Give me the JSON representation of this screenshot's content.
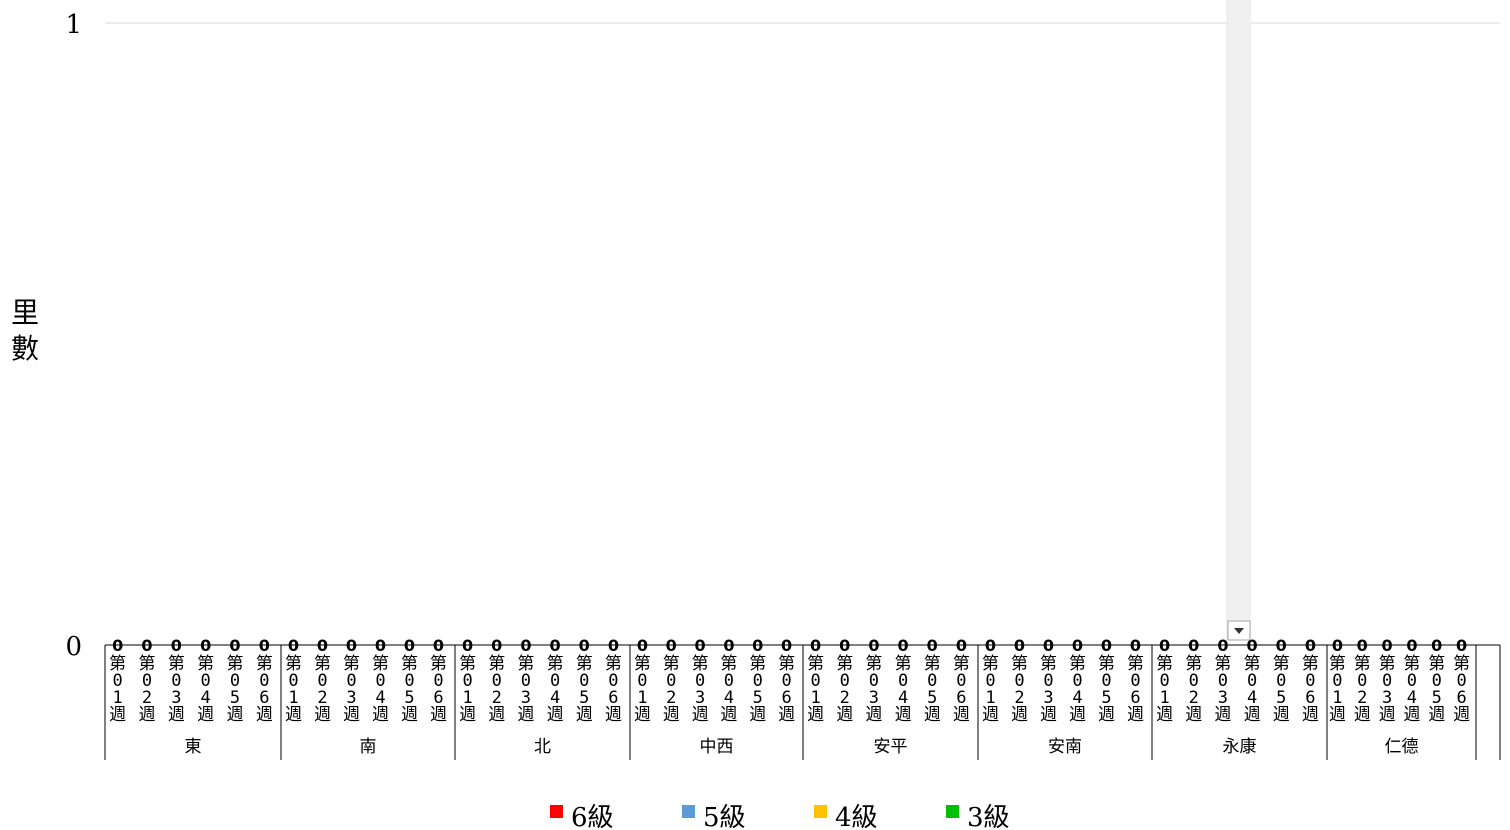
{
  "chart_data": {
    "type": "bar",
    "title": "",
    "xlabel": "",
    "ylabel": "里數",
    "ylim": [
      0,
      1
    ],
    "y_ticks": [
      "0",
      "1"
    ],
    "grid": true,
    "legend_position": "bottom",
    "groups": [
      {
        "name": "東",
        "categories": [
          "第01週",
          "第02週",
          "第03週",
          "第04週",
          "第05週",
          "第06週"
        ]
      },
      {
        "name": "南",
        "categories": [
          "第01週",
          "第02週",
          "第03週",
          "第04週",
          "第05週",
          "第06週"
        ]
      },
      {
        "name": "北",
        "categories": [
          "第01週",
          "第02週",
          "第03週",
          "第04週",
          "第05週",
          "第06週"
        ]
      },
      {
        "name": "中西",
        "categories": [
          "第01週",
          "第02週",
          "第03週",
          "第04週",
          "第05週",
          "第06週"
        ]
      },
      {
        "name": "安平",
        "categories": [
          "第01週",
          "第02週",
          "第03週",
          "第04週",
          "第05週",
          "第06週"
        ]
      },
      {
        "name": "安南",
        "categories": [
          "第01週",
          "第02週",
          "第03週",
          "第04週",
          "第05週",
          "第06週"
        ]
      },
      {
        "name": "永康",
        "categories": [
          "第01週",
          "第02週",
          "第03週",
          "第04週",
          "第05週",
          "第06週"
        ]
      },
      {
        "name": "仁德",
        "categories": [
          "第01週",
          "第02週",
          "第03週",
          "第04週",
          "第05週",
          "第06週"
        ]
      }
    ],
    "series": [
      {
        "name": "6級",
        "color": "#ff0000",
        "values": [
          0,
          0,
          0,
          0,
          0,
          0,
          0,
          0,
          0,
          0,
          0,
          0,
          0,
          0,
          0,
          0,
          0,
          0,
          0,
          0,
          0,
          0,
          0,
          0,
          0,
          0,
          0,
          0,
          0,
          0,
          0,
          0,
          0,
          0,
          0,
          0,
          0,
          0,
          0,
          0,
          0,
          0,
          0,
          0,
          0,
          0,
          0,
          0
        ]
      },
      {
        "name": "5級",
        "color": "#5b9bd5",
        "values": [
          0,
          0,
          0,
          0,
          0,
          0,
          0,
          0,
          0,
          0,
          0,
          0,
          0,
          0,
          0,
          0,
          0,
          0,
          0,
          0,
          0,
          0,
          0,
          0,
          0,
          0,
          0,
          0,
          0,
          0,
          0,
          0,
          0,
          0,
          0,
          0,
          0,
          0,
          0,
          0,
          0,
          0,
          0,
          0,
          0,
          0,
          0,
          0
        ]
      },
      {
        "name": "4級",
        "color": "#ffc000",
        "values": [
          0,
          0,
          0,
          0,
          0,
          0,
          0,
          0,
          0,
          0,
          0,
          0,
          0,
          0,
          0,
          0,
          0,
          0,
          0,
          0,
          0,
          0,
          0,
          0,
          0,
          0,
          0,
          0,
          0,
          0,
          0,
          0,
          0,
          0,
          0,
          0,
          0,
          0,
          0,
          0,
          0,
          0,
          0,
          0,
          0,
          0,
          0,
          0
        ]
      },
      {
        "name": "3級",
        "color": "#00c000",
        "values": [
          0,
          0,
          0,
          0,
          0,
          0,
          0,
          0,
          0,
          0,
          0,
          0,
          0,
          0,
          0,
          0,
          0,
          0,
          0,
          0,
          0,
          0,
          0,
          0,
          0,
          0,
          0,
          0,
          0,
          0,
          0,
          0,
          0,
          0,
          0,
          0,
          0,
          0,
          0,
          0,
          0,
          0,
          0,
          0,
          0,
          0,
          0,
          0
        ]
      }
    ],
    "data_labels": [
      "0",
      "0",
      "0",
      "0",
      "0",
      "0",
      "0",
      "0",
      "0",
      "0",
      "0",
      "0",
      "0",
      "0",
      "0",
      "0",
      "0",
      "0",
      "0",
      "0",
      "0",
      "0",
      "0",
      "0",
      "0",
      "0",
      "0",
      "0",
      "0",
      "0",
      "0",
      "0",
      "0",
      "0",
      "0",
      "0",
      "0",
      "0",
      "0",
      "0",
      "0",
      "0",
      "0",
      "0",
      "0",
      "0",
      "0",
      "0"
    ]
  },
  "ui": {
    "filter_dropdown_icon": "chevron-down-icon",
    "scroll_track_color": "#f0f0f0"
  }
}
